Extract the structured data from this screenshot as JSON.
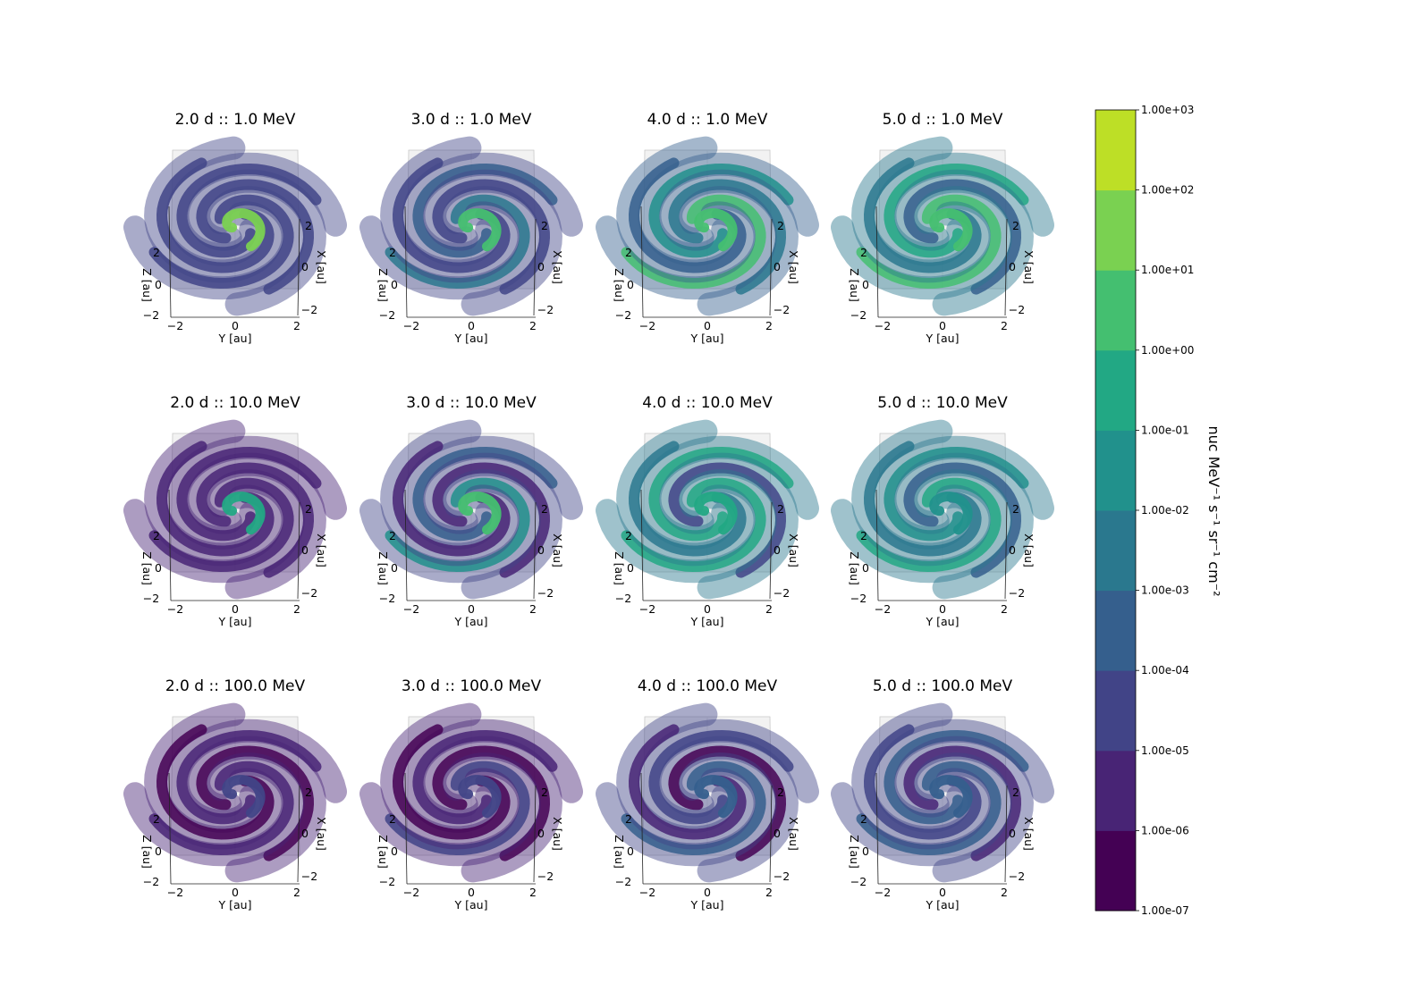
{
  "chart_data": {
    "type": "scatter",
    "layout": "3x4 grid of 3D scatter panels",
    "panels": [
      {
        "title": "2.0 d :: 1.0 MeV",
        "day": 2.0,
        "energy_mev": 1.0,
        "spiral_level": "1.00e-05",
        "core_level": "1.00e+01",
        "arm_levels": [
          "1.00e-05",
          "1.00e-05",
          "1.00e-05",
          "1.00e-05"
        ]
      },
      {
        "title": "3.0 d :: 1.0 MeV",
        "day": 3.0,
        "energy_mev": 1.0,
        "spiral_level": "1.00e-05",
        "core_level": "1.00e+00",
        "arm_levels": [
          "1.00e-04",
          "1.00e-05",
          "1.00e-03",
          "1.00e-05"
        ]
      },
      {
        "title": "4.0 d :: 1.0 MeV",
        "day": 4.0,
        "energy_mev": 1.0,
        "spiral_level": "1.00e-04",
        "core_level": "1.00e+00",
        "arm_levels": [
          "1.00e-02",
          "1.00e-03",
          "1.00e+00",
          "1.00e-04"
        ]
      },
      {
        "title": "5.0 d :: 1.0 MeV",
        "day": 5.0,
        "energy_mev": 1.0,
        "spiral_level": "1.00e-03",
        "core_level": "1.00e+00",
        "arm_levels": [
          "1.00e-01",
          "1.00e-04",
          "1.00e+00",
          "1.00e-03"
        ]
      },
      {
        "title": "2.0 d :: 10.0 MeV",
        "day": 2.0,
        "energy_mev": 10.0,
        "spiral_level": "1.00e-06",
        "core_level": "1.00e-01",
        "arm_levels": [
          "1.00e-06",
          "1.00e-06",
          "1.00e-06",
          "1.00e-06"
        ]
      },
      {
        "title": "3.0 d :: 10.0 MeV",
        "day": 3.0,
        "energy_mev": 10.0,
        "spiral_level": "1.00e-05",
        "core_level": "1.00e+00",
        "arm_levels": [
          "1.00e-04",
          "1.00e-06",
          "1.00e-02",
          "1.00e-06"
        ]
      },
      {
        "title": "4.0 d :: 10.0 MeV",
        "day": 4.0,
        "energy_mev": 10.0,
        "spiral_level": "1.00e-03",
        "core_level": "1.00e-01",
        "arm_levels": [
          "1.00e-01",
          "1.00e-05",
          "1.00e-01",
          "1.00e-03"
        ]
      },
      {
        "title": "5.0 d :: 10.0 MeV",
        "day": 5.0,
        "energy_mev": 10.0,
        "spiral_level": "1.00e-03",
        "core_level": "1.00e-02",
        "arm_levels": [
          "1.00e-02",
          "1.00e-04",
          "1.00e-01",
          "1.00e-03"
        ]
      },
      {
        "title": "2.0 d :: 100.0 MeV",
        "day": 2.0,
        "energy_mev": 100.0,
        "spiral_level": "1.00e-06",
        "core_level": "1.00e-05",
        "arm_levels": [
          "1.00e-06",
          "1.00e-07",
          "1.00e-06",
          "1.00e-07"
        ]
      },
      {
        "title": "3.0 d :: 100.0 MeV",
        "day": 3.0,
        "energy_mev": 100.0,
        "spiral_level": "1.00e-06",
        "core_level": "1.00e-05",
        "arm_levels": [
          "1.00e-06",
          "1.00e-07",
          "1.00e-05",
          "1.00e-07"
        ]
      },
      {
        "title": "4.0 d :: 100.0 MeV",
        "day": 4.0,
        "energy_mev": 100.0,
        "spiral_level": "1.00e-05",
        "core_level": "1.00e-04",
        "arm_levels": [
          "1.00e-05",
          "1.00e-07",
          "1.00e-04",
          "1.00e-06"
        ]
      },
      {
        "title": "5.0 d :: 100.0 MeV",
        "day": 5.0,
        "energy_mev": 100.0,
        "spiral_level": "1.00e-05",
        "core_level": "1.00e-04",
        "arm_levels": [
          "1.00e-04",
          "1.00e-06",
          "1.00e-04",
          "1.00e-05"
        ]
      }
    ],
    "axes": {
      "xlabel": "Y [au]",
      "zlabel": "Z [au]",
      "ylabel": "X [au]",
      "y_ticks": [
        "−2",
        "0",
        "2"
      ],
      "z_ticks": [
        "−2",
        "0",
        "2"
      ],
      "x_ticks": [
        "−2",
        "0",
        "2"
      ]
    },
    "colorbar": {
      "label": "nuc MeV⁻¹ s⁻¹ sr⁻¹ cm⁻²",
      "scale": "log",
      "levels": [
        "1.00e-07",
        "1.00e-06",
        "1.00e-05",
        "1.00e-04",
        "1.00e-03",
        "1.00e-02",
        "1.00e-01",
        "1.00e+00",
        "1.00e+01",
        "1.00e+02",
        "1.00e+03"
      ],
      "colors": [
        "#440154",
        "#482475",
        "#414487",
        "#355f8d",
        "#2a788e",
        "#21918c",
        "#22a884",
        "#44bf70",
        "#7ad151",
        "#bddf26",
        "#fde725"
      ]
    }
  }
}
